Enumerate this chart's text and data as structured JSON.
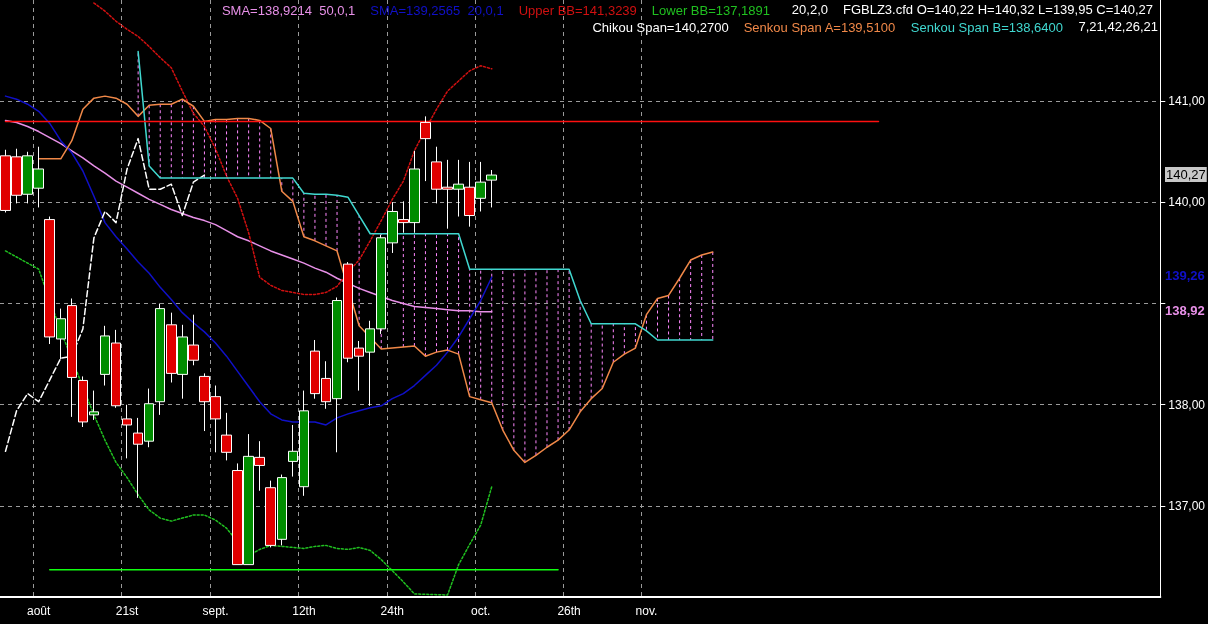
{
  "chart_data": {
    "type": "candlestick",
    "title": "FGBLZ3.cfd O=140,22 H=140,32 L=139,95 C=140,27",
    "categories": [
      null,
      null,
      null,
      "août",
      null,
      null,
      null,
      null,
      null,
      null,
      null,
      "21st",
      null,
      null,
      null,
      null,
      null,
      null,
      null,
      "sept.",
      null,
      null,
      null,
      null,
      null,
      null,
      null,
      "12th",
      null,
      null,
      null,
      null,
      null,
      null,
      null,
      "24th",
      null,
      null,
      null,
      null,
      null,
      null,
      null,
      "oct.",
      null,
      null,
      null,
      null,
      null,
      null,
      null,
      "26th",
      null,
      null,
      null,
      null,
      null,
      null,
      "nov.",
      null,
      null,
      null,
      null,
      null,
      null,
      null,
      null,
      null,
      null,
      null,
      null,
      null,
      null,
      null,
      null,
      null,
      null,
      null,
      null,
      null,
      null,
      null,
      null,
      null,
      null,
      null,
      null,
      null,
      null,
      null,
      null,
      null,
      null,
      null,
      null,
      null,
      null,
      null,
      null,
      null,
      null,
      null,
      null,
      null,
      null
    ],
    "ohlc": [
      [
        140.46,
        140.52,
        139.9,
        139.92
      ],
      [
        140.45,
        140.53,
        139.99,
        140.07
      ],
      [
        140.08,
        140.5,
        139.99,
        140.46
      ],
      [
        140.14,
        140.55,
        139.95,
        140.33
      ],
      [
        139.83,
        139.86,
        138.6,
        138.67
      ],
      [
        138.65,
        138.95,
        138.45,
        138.85
      ],
      [
        138.98,
        139.05,
        137.88,
        138.27
      ],
      [
        138.24,
        138.28,
        137.78,
        137.83
      ],
      [
        137.9,
        138.14,
        137.85,
        137.93
      ],
      [
        138.3,
        138.78,
        138.19,
        138.68
      ],
      [
        138.61,
        138.74,
        137.97,
        137.99
      ],
      [
        137.86,
        138.0,
        137.47,
        137.8
      ],
      [
        137.72,
        137.87,
        137.08,
        137.61
      ],
      [
        137.64,
        138.16,
        137.58,
        138.01
      ],
      [
        138.03,
        139.0,
        137.9,
        138.95
      ],
      [
        138.79,
        138.91,
        138.22,
        138.31
      ],
      [
        138.3,
        138.79,
        138.06,
        138.67
      ],
      [
        138.59,
        138.89,
        138.39,
        138.44
      ],
      [
        138.28,
        138.31,
        137.74,
        138.03
      ],
      [
        138.08,
        138.19,
        137.53,
        137.86
      ],
      [
        137.7,
        137.92,
        137.45,
        137.53
      ],
      [
        137.35,
        137.42,
        136.42,
        136.42
      ],
      [
        136.42,
        137.71,
        136.42,
        137.49
      ],
      [
        137.48,
        137.64,
        137.15,
        137.4
      ],
      [
        137.18,
        137.25,
        136.59,
        136.61
      ],
      [
        136.67,
        137.31,
        136.61,
        137.28
      ],
      [
        137.44,
        137.8,
        137.29,
        137.54
      ],
      [
        137.19,
        138.14,
        137.1,
        137.94
      ],
      [
        138.53,
        138.64,
        138.06,
        138.11
      ],
      [
        138.26,
        138.43,
        137.96,
        138.03
      ],
      [
        138.06,
        139.06,
        137.53,
        139.03
      ],
      [
        139.39,
        139.41,
        138.42,
        138.46
      ],
      [
        138.56,
        138.63,
        138.14,
        138.48
      ],
      [
        138.52,
        138.83,
        137.99,
        138.75
      ],
      [
        138.75,
        139.68,
        138.7,
        139.65
      ],
      [
        139.6,
        140.0,
        139.5,
        139.91
      ],
      [
        139.83,
        140.01,
        139.7,
        139.8
      ],
      [
        139.8,
        140.51,
        139.7,
        140.33
      ],
      [
        140.79,
        140.85,
        140.21,
        140.63
      ],
      [
        140.4,
        140.55,
        139.99,
        140.13
      ],
      [
        140.15,
        140.42,
        139.74,
        140.13
      ],
      [
        140.13,
        140.42,
        139.86,
        140.18
      ],
      [
        140.15,
        140.4,
        139.76,
        139.87
      ],
      [
        140.04,
        140.4,
        139.91,
        140.2
      ],
      [
        140.22,
        140.32,
        139.95,
        140.27
      ],
      null,
      null,
      null,
      null,
      null,
      null,
      null,
      null,
      null,
      null,
      null,
      null,
      null,
      null,
      null,
      null,
      null,
      null,
      null,
      null,
      null,
      null,
      null,
      null,
      null,
      null,
      null,
      null,
      null,
      null,
      null,
      null,
      null,
      null,
      null,
      null,
      null,
      null,
      null,
      null,
      null,
      null,
      null,
      null,
      null,
      null,
      null,
      null,
      null,
      null,
      null,
      null,
      null,
      null,
      null,
      null,
      null,
      null,
      null,
      null
    ],
    "series": [
      {
        "type": "line",
        "name": "SMA=138,9214  50,0,1",
        "color": "#e890e8",
        "line_style": "solid",
        "values": [
          140.81,
          140.79,
          140.75,
          140.7,
          140.64,
          140.58,
          140.51,
          140.44,
          140.36,
          140.29,
          140.21,
          140.15,
          140.09,
          140.03,
          139.98,
          139.93,
          139.89,
          139.85,
          139.82,
          139.78,
          139.72,
          139.66,
          139.62,
          139.57,
          139.52,
          139.48,
          139.44,
          139.4,
          139.35,
          139.31,
          139.25,
          null,
          139.15,
          139.11,
          null,
          139.03,
          139.0,
          138.97,
          138.96,
          138.95,
          138.94,
          138.93,
          138.93,
          138.92,
          138.92,
          null,
          null,
          null,
          null,
          null,
          null,
          null,
          null,
          null,
          null,
          null,
          null,
          null,
          null,
          null,
          null,
          null,
          null,
          null,
          null,
          null,
          null,
          null,
          null,
          null,
          null,
          null,
          null,
          null,
          null,
          null,
          null,
          null,
          null,
          null,
          null,
          null,
          null,
          null,
          null,
          null,
          null,
          null,
          null,
          null,
          null,
          null,
          null,
          null,
          null,
          null,
          null,
          null,
          null,
          null,
          null,
          null,
          null,
          null,
          null
        ]
      },
      {
        "type": "line",
        "name": "SMA=139,2565  20,0,1",
        "color": "#1010c8",
        "line_style": "solid",
        "values": [
          141.05,
          141.02,
          140.97,
          140.9,
          140.78,
          140.61,
          140.49,
          140.31,
          140.06,
          139.8,
          139.66,
          139.54,
          139.41,
          139.3,
          139.16,
          139.04,
          138.91,
          138.81,
          138.72,
          138.61,
          138.48,
          138.33,
          138.18,
          138.03,
          137.91,
          137.85,
          137.83,
          null,
          137.83,
          137.8,
          137.87,
          137.91,
          137.94,
          137.97,
          137.99,
          138.06,
          138.11,
          138.19,
          138.29,
          138.39,
          138.52,
          138.67,
          138.85,
          139.03,
          139.26,
          null,
          null,
          null,
          null,
          null,
          null,
          null,
          null,
          null,
          null,
          null,
          null,
          null,
          null,
          null,
          null,
          null,
          null,
          null,
          null,
          null,
          null,
          null,
          null,
          null,
          null,
          null,
          null,
          null,
          null,
          null,
          null,
          null,
          null,
          null,
          null,
          null,
          null,
          null,
          null,
          null,
          null,
          null,
          null,
          null,
          null,
          null,
          null,
          null,
          null,
          null,
          null,
          null,
          null,
          null,
          null,
          null,
          null,
          null,
          null
        ]
      },
      {
        "type": "line",
        "name": "Upper BB=141,3239",
        "color": "#d01010",
        "line_style": "dotted",
        "values": [
          null,
          null,
          null,
          null,
          null,
          null,
          null,
          null,
          141.97,
          141.89,
          141.79,
          141.71,
          141.64,
          141.54,
          141.43,
          141.33,
          141.1,
          140.88,
          140.75,
          140.53,
          140.26,
          140.04,
          139.7,
          139.26,
          139.18,
          139.13,
          139.11,
          139.09,
          139.09,
          139.11,
          139.17,
          139.31,
          139.43,
          139.62,
          139.82,
          140.03,
          140.21,
          140.51,
          140.72,
          140.92,
          141.1,
          141.2,
          141.3,
          141.35,
          141.32,
          null,
          null,
          null,
          null,
          null,
          null,
          null,
          null,
          null,
          null,
          null,
          null,
          null,
          null,
          null,
          null,
          null,
          null,
          null,
          null,
          null,
          null,
          null,
          null,
          null,
          null,
          null,
          null,
          null,
          null,
          null,
          null,
          null,
          null,
          null,
          null,
          null,
          null,
          null,
          null,
          null,
          null,
          null,
          null,
          null,
          null,
          null,
          null,
          null,
          null,
          null,
          null,
          null,
          null,
          null,
          null,
          null,
          null,
          null,
          null
        ]
      },
      {
        "type": "line",
        "name": "Lower BB=137,1891",
        "color": "#20c020",
        "line_style": "dotted",
        "values": [
          139.52,
          139.46,
          139.4,
          139.34,
          null,
          138.73,
          null,
          null,
          137.9,
          137.65,
          137.43,
          137.28,
          137.11,
          136.96,
          136.88,
          136.85,
          136.88,
          136.91,
          136.91,
          136.86,
          136.78,
          null,
          136.51,
          136.57,
          136.61,
          136.6,
          136.59,
          136.58,
          136.6,
          136.61,
          136.58,
          136.57,
          136.59,
          136.56,
          136.47,
          136.36,
          136.25,
          136.13,
          null,
          null,
          136.12,
          136.42,
          136.62,
          136.81,
          137.19,
          null,
          null,
          null,
          null,
          null,
          null,
          null,
          null,
          null,
          null,
          null,
          null,
          null,
          null,
          null,
          null,
          null,
          null,
          null,
          null,
          null,
          null,
          null,
          null,
          null,
          null,
          null,
          null,
          null,
          null,
          null,
          null,
          null,
          null,
          null,
          null,
          null,
          null,
          null,
          null,
          null,
          null,
          null,
          null,
          null,
          null,
          null,
          null,
          null,
          null,
          null,
          null,
          null,
          null,
          null,
          null,
          null,
          null,
          null,
          null
        ]
      },
      {
        "type": "line",
        "name": "Chikou Span=140,2700",
        "color": "#ffffff",
        "line_style": "dashed",
        "values": [
          137.54,
          137.94,
          138.11,
          138.03,
          null,
          138.46,
          138.48,
          138.75,
          139.65,
          139.91,
          139.8,
          140.33,
          140.63,
          140.13,
          140.13,
          140.18,
          139.87,
          140.2,
          140.27,
          null,
          null,
          null,
          null,
          null,
          null,
          null,
          null,
          null,
          null,
          null,
          null,
          null,
          null,
          null,
          null,
          null,
          null,
          null,
          null,
          null,
          null,
          null,
          null,
          null,
          null,
          null,
          null,
          null,
          null,
          null,
          null,
          null,
          null,
          null,
          null,
          null,
          null,
          null,
          null,
          null,
          null,
          null,
          null,
          null,
          null,
          null,
          null,
          null,
          null,
          null,
          null,
          null,
          null,
          null,
          null,
          null,
          null,
          null,
          null,
          null,
          null,
          null,
          null,
          null,
          null,
          null,
          null,
          null,
          null,
          null,
          null,
          null,
          null,
          null,
          null,
          null,
          null,
          null,
          null,
          null,
          null,
          null,
          null,
          null,
          null
        ]
      },
      {
        "type": "line",
        "name": "Senkou Span A=139,5100",
        "color": "#f08848",
        "line_style": "solid",
        "values": [
          null,
          null,
          null,
          140.43,
          140.43,
          140.43,
          140.61,
          140.92,
          141.03,
          141.05,
          141.03,
          140.97,
          140.85,
          140.96,
          140.97,
          140.97,
          141.02,
          140.95,
          140.8,
          140.82,
          140.82,
          140.83,
          140.83,
          140.81,
          140.73,
          140.11,
          140.01,
          139.66,
          139.62,
          139.57,
          139.52,
          null,
          138.78,
          null,
          138.55,
          138.56,
          138.57,
          138.58,
          138.48,
          138.52,
          138.54,
          138.5,
          138.08,
          138.05,
          138.02,
          137.75,
          137.55,
          137.43,
          137.5,
          137.58,
          137.65,
          137.75,
          137.93,
          138.06,
          138.16,
          138.42,
          138.5,
          138.56,
          138.89,
          139.05,
          139.08,
          139.25,
          139.43,
          139.48,
          139.51,
          null,
          null,
          null,
          null,
          null,
          null,
          null,
          null,
          null,
          null,
          null,
          null,
          null,
          null,
          null,
          null,
          null,
          null,
          null,
          null,
          null,
          null,
          null,
          null,
          null,
          null,
          null,
          null,
          null,
          null,
          null,
          null,
          null,
          null,
          null,
          null,
          null,
          null,
          null,
          null
        ]
      },
      {
        "type": "line",
        "name": "Senkou Span B=138,6400",
        "color": "#40d8d0",
        "line_style": "solid",
        "values": [
          null,
          null,
          null,
          null,
          null,
          null,
          null,
          null,
          null,
          null,
          null,
          null,
          141.49,
          140.36,
          140.24,
          140.24,
          140.24,
          140.24,
          140.24,
          140.24,
          140.24,
          140.24,
          140.24,
          140.24,
          140.24,
          140.24,
          140.24,
          140.09,
          140.08,
          140.08,
          140.07,
          140.05,
          139.87,
          139.69,
          139.69,
          null,
          139.69,
          139.69,
          139.69,
          139.69,
          139.69,
          139.69,
          139.34,
          139.34,
          139.34,
          139.34,
          139.34,
          139.34,
          139.34,
          139.34,
          139.34,
          139.34,
          139.03,
          138.8,
          138.8,
          138.8,
          138.8,
          138.8,
          138.73,
          138.64,
          138.64,
          138.64,
          138.64,
          138.64,
          138.64,
          null,
          null,
          null,
          null,
          null,
          null,
          null,
          null,
          null,
          null,
          null,
          null,
          null,
          null,
          null,
          null,
          null,
          null,
          null,
          null,
          null,
          null,
          null,
          null,
          null,
          null,
          null,
          null,
          null,
          null,
          null,
          null,
          null,
          null,
          null,
          null,
          null,
          null,
          null,
          null
        ]
      },
      {
        "type": "line",
        "color": "#ff1010",
        "line_style": "solid",
        "values": [
          140.8,
          140.8,
          140.8,
          140.8,
          140.8,
          140.8,
          140.8,
          140.8,
          140.8,
          140.8,
          140.8,
          140.8,
          140.8,
          140.8,
          140.8,
          140.8,
          140.8,
          140.8,
          140.8,
          140.8,
          140.8,
          140.8,
          140.8,
          140.8,
          140.8,
          140.8,
          140.8,
          140.8,
          140.8,
          140.8,
          140.8,
          140.8,
          140.8,
          140.8,
          140.8,
          140.8,
          140.8,
          140.8,
          140.8,
          140.8,
          140.8,
          140.8,
          140.8,
          140.8,
          140.8,
          140.8,
          140.8,
          140.8,
          140.8,
          140.8,
          140.8,
          140.8,
          140.8,
          140.8,
          140.8,
          140.8,
          140.8,
          140.8,
          140.8,
          140.8,
          140.8,
          140.8,
          140.8,
          140.8,
          140.8,
          140.8,
          140.8,
          140.8,
          140.8,
          140.8,
          140.8,
          140.8,
          140.8,
          140.8,
          140.8,
          140.8,
          140.8,
          140.8,
          140.8,
          140.8,
          null,
          null,
          null,
          null,
          null,
          null,
          null,
          null,
          null,
          null,
          null,
          null,
          null,
          null,
          null,
          null,
          null,
          null,
          null,
          null,
          null,
          null,
          null,
          null,
          null
        ]
      },
      {
        "type": "line",
        "color": "#10ff10",
        "line_style": "solid",
        "values": [
          null,
          null,
          null,
          null,
          136.37,
          136.37,
          136.37,
          136.37,
          136.37,
          136.37,
          136.37,
          136.37,
          136.37,
          136.37,
          136.37,
          136.37,
          136.37,
          136.37,
          136.37,
          136.37,
          136.37,
          136.37,
          136.37,
          136.37,
          136.37,
          136.37,
          136.37,
          136.37,
          136.37,
          136.37,
          136.37,
          136.37,
          136.37,
          136.37,
          136.37,
          136.37,
          136.37,
          136.37,
          136.37,
          136.37,
          136.37,
          136.37,
          136.37,
          136.37,
          136.37,
          136.37,
          136.37,
          136.37,
          136.37,
          136.37,
          136.37,
          null,
          null,
          null,
          null,
          null,
          null,
          null,
          null,
          null,
          null,
          null,
          null,
          null,
          null,
          null,
          null,
          null,
          null,
          null,
          null,
          null,
          null,
          null,
          null,
          null,
          null,
          null,
          null,
          null,
          null,
          null,
          null,
          null,
          null,
          null,
          null,
          null,
          null,
          null,
          null,
          null,
          null,
          null,
          null,
          null,
          null,
          null,
          null,
          null,
          null,
          null,
          null,
          null,
          null
        ]
      }
    ],
    "ylim": [
      136.1,
      142.0
    ],
    "yticks": [
      {
        "value": 137,
        "label": "137,00"
      },
      {
        "value": 138,
        "label": "138,00"
      },
      {
        "value": 139,
        "label": null
      },
      {
        "value": 140,
        "label": "140,00"
      },
      {
        "value": 141,
        "label": "141,00"
      }
    ],
    "grid": true,
    "legend": "top right",
    "annotations": [
      "20,2,0",
      "7,21,42,26,21",
      "140,27",
      "139,26",
      "138,92"
    ]
  }
}
